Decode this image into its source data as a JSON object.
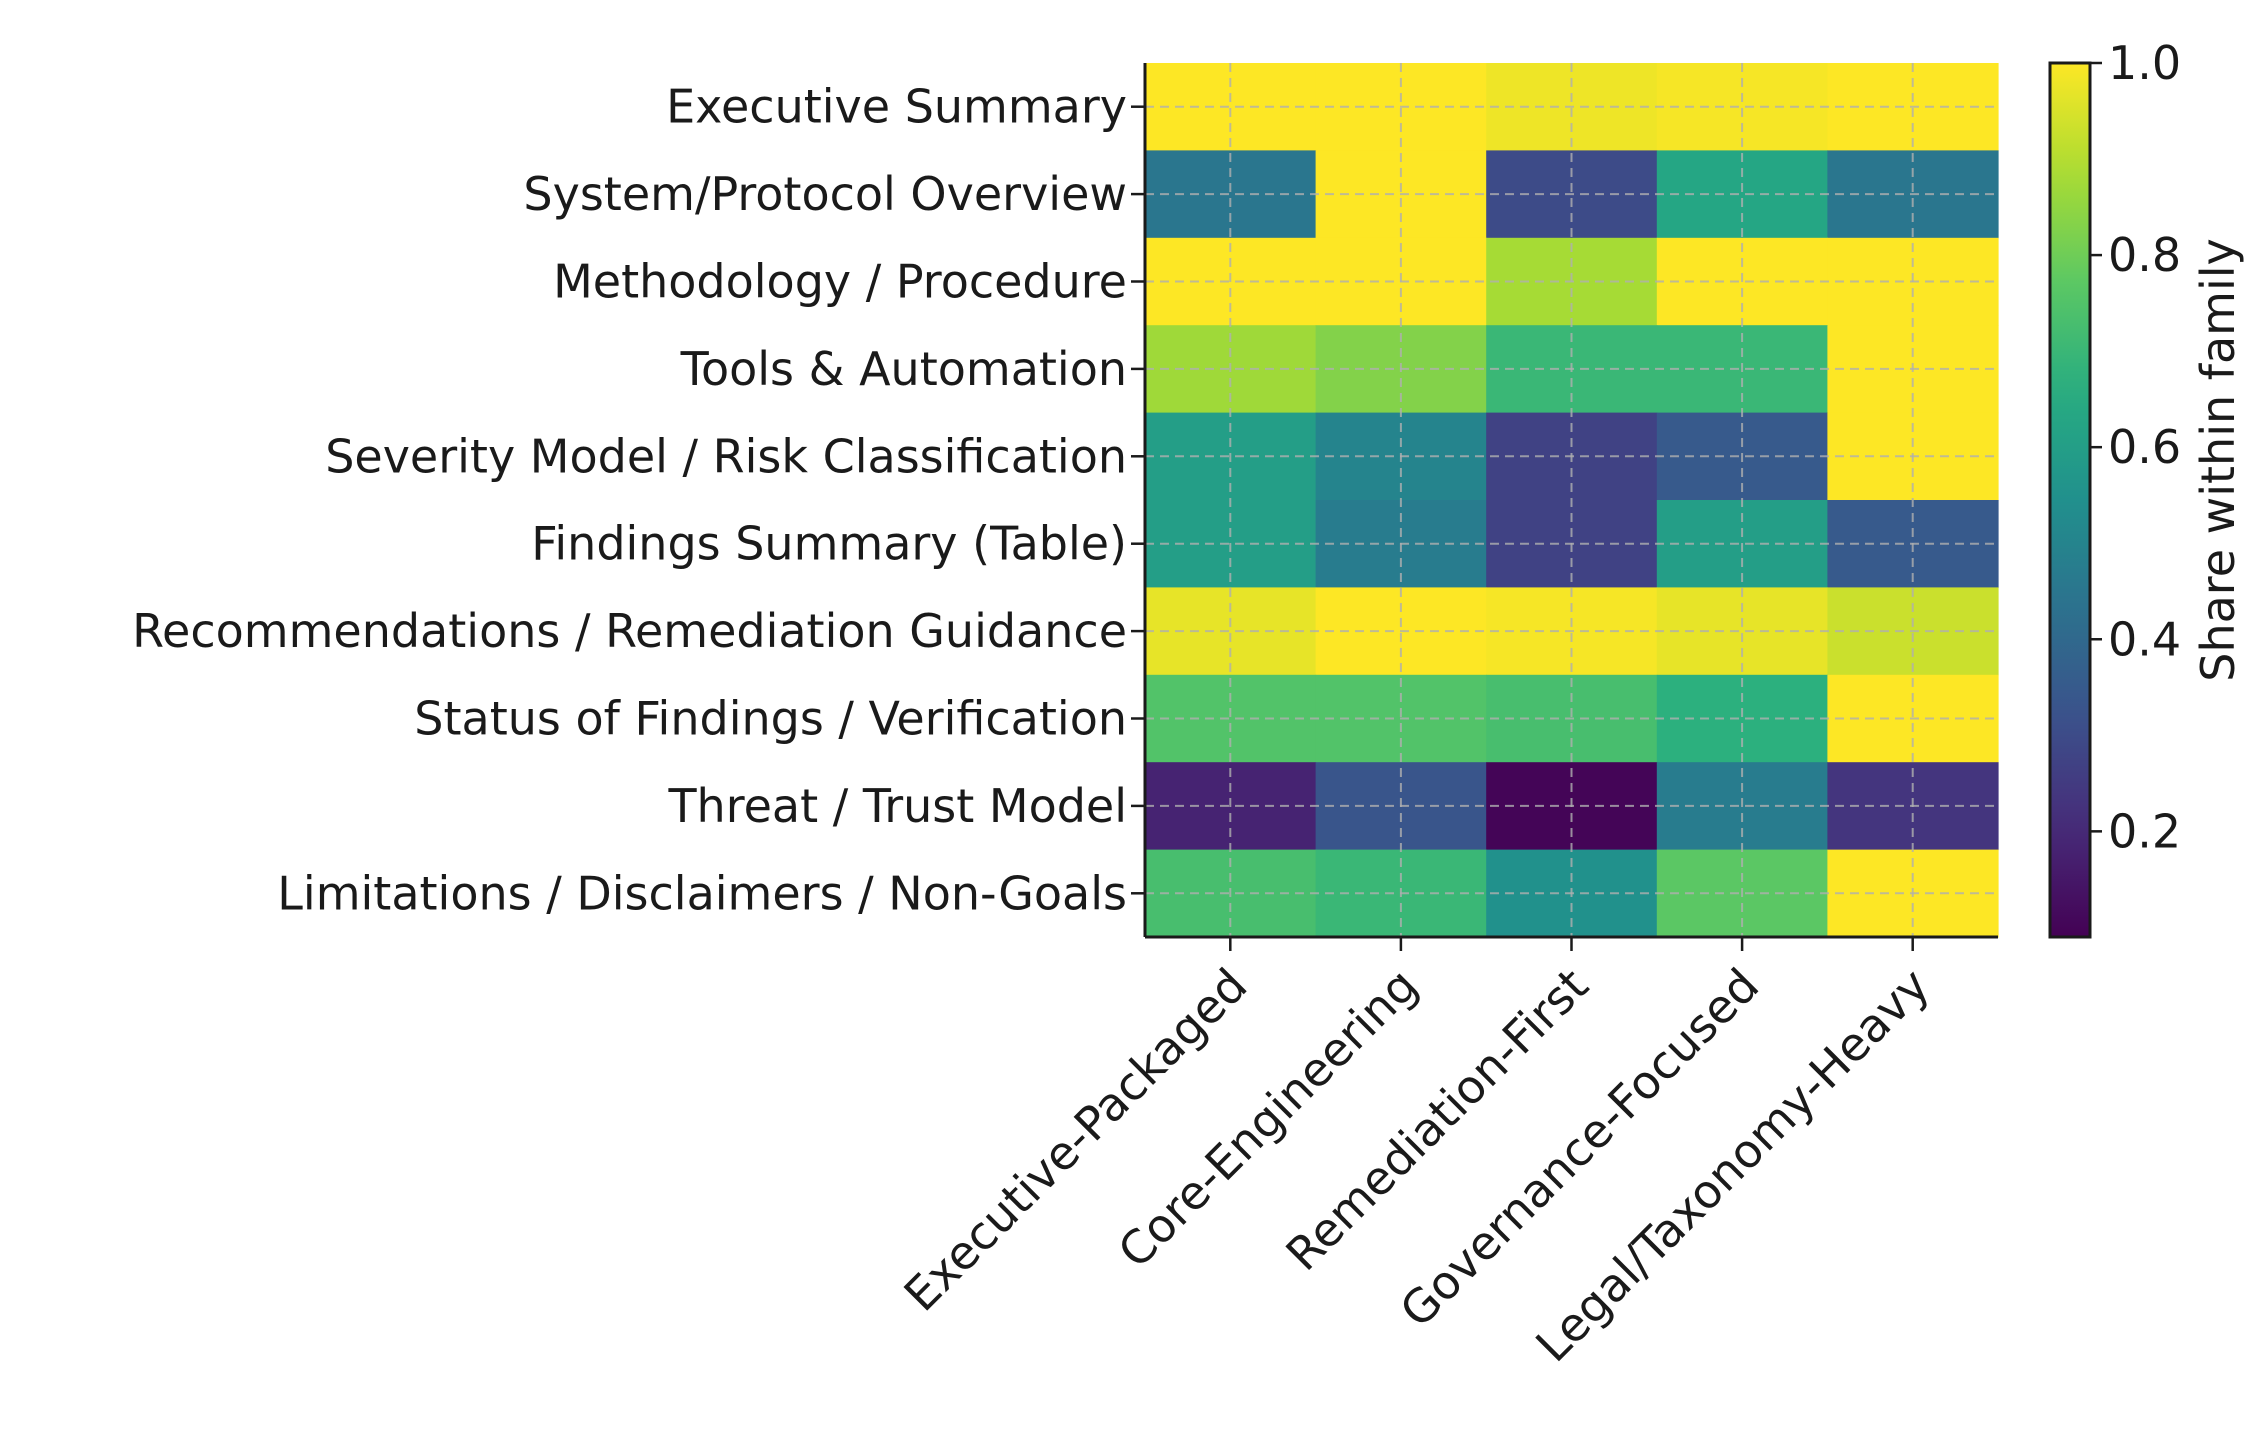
{
  "chart_data": {
    "type": "heatmap",
    "title": "",
    "xlabel": "",
    "ylabel": "",
    "x_categories": [
      "Executive-Packaged",
      "Core-Engineering",
      "Remediation-First",
      "Governance-Focused",
      "Legal/Taxonomy-Heavy"
    ],
    "y_categories": [
      "Executive Summary",
      "System/Protocol Overview",
      "Methodology / Procedure",
      "Tools & Automation",
      "Severity Model / Risk Classification",
      "Findings Summary (Table)",
      "Recommendations / Remediation Guidance",
      "Status of Findings / Verification",
      "Threat / Trust Model",
      "Limitations / Disclaimers / Non-Goals"
    ],
    "values": [
      [
        1.0,
        1.0,
        0.98,
        0.99,
        1.0
      ],
      [
        0.45,
        1.0,
        0.3,
        0.63,
        0.45
      ],
      [
        1.0,
        1.0,
        0.88,
        1.0,
        1.0
      ],
      [
        0.87,
        0.83,
        0.7,
        0.7,
        1.0
      ],
      [
        0.6,
        0.5,
        0.27,
        0.35,
        1.0
      ],
      [
        0.6,
        0.47,
        0.27,
        0.6,
        0.35
      ],
      [
        0.97,
        1.0,
        0.99,
        0.97,
        0.93
      ],
      [
        0.75,
        0.75,
        0.73,
        0.67,
        1.0
      ],
      [
        0.18,
        0.33,
        0.1,
        0.47,
        0.23
      ],
      [
        0.73,
        0.7,
        0.55,
        0.77,
        1.0
      ]
    ],
    "colorbar": {
      "label": "Share within family",
      "min": 0.09,
      "max": 1.0,
      "ticks": [
        "0.2",
        "0.4",
        "0.6",
        "0.8",
        "1.0"
      ],
      "colormap": "viridis"
    },
    "grid": true,
    "grid_color": "#b0b0b0"
  }
}
